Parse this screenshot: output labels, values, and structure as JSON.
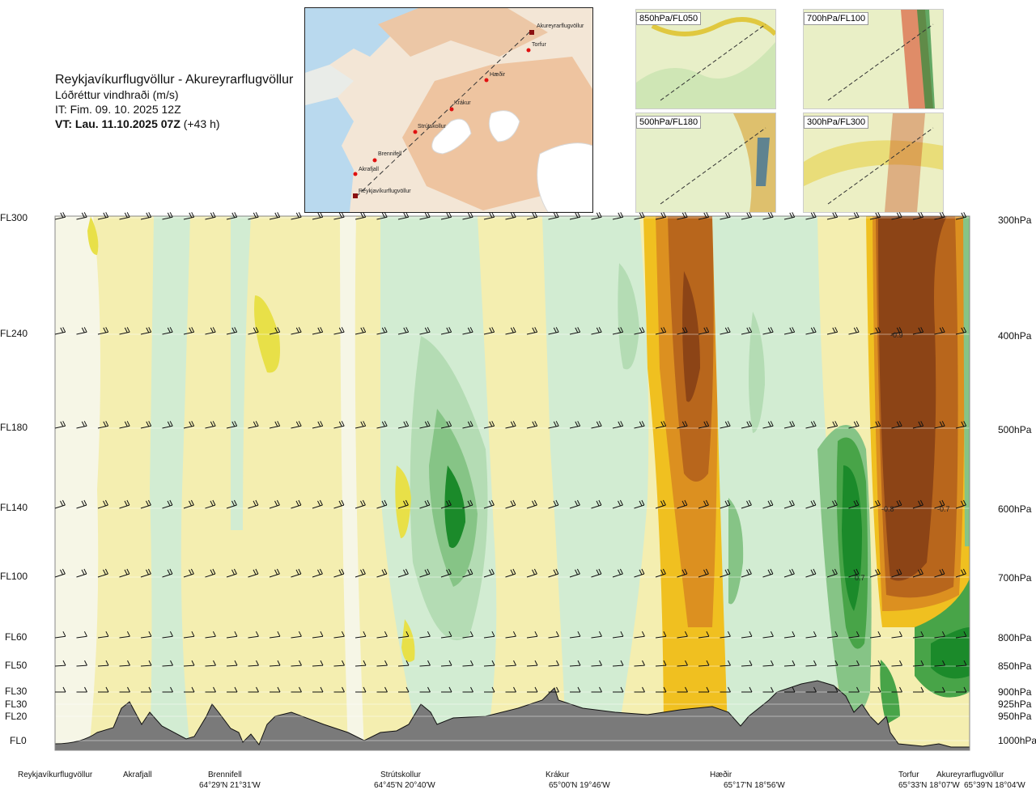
{
  "header": {
    "route": "Reykjavíkurflugvöllur - Akureyrarflugvöllur",
    "variable": "Lóðréttur vindhraði (m/s)",
    "issue_time": "IT: Fim. 09. 10. 2025 12Z",
    "valid_time": "VT: Lau. 11.10.2025 07Z",
    "lead": "(+43 h)"
  },
  "map": {
    "waypoints": [
      "Reykjavíkurflugvöllur",
      "Akrafjall",
      "Brennifell",
      "Strútskollur",
      "Krákur",
      "Hæðir",
      "Torfur",
      "Akureyrarflugvöllur"
    ]
  },
  "thumbnails": [
    "850hPa/FL050",
    "700hPa/FL100",
    "500hPa/FL180",
    "300hPa/FL300"
  ],
  "colors": {
    "strong_down": "#8c4416",
    "down_4": "#b8661c",
    "down_3": "#dc9020",
    "down_2": "#f0c020",
    "down_1": "#e8e048",
    "weak_down": "#f4eeb0",
    "neutral": "#f6f6e6",
    "weak_up": "#d2ecd2",
    "up_2": "#b4dcb4",
    "up_3": "#86c486",
    "up_4": "#48a448",
    "strong_up": "#1b8a2a",
    "terrain": "#7a7a7a"
  },
  "chart_data": {
    "type": "heatmap",
    "title": "Lóðréttur vindhraði (m/s)",
    "x_labels": [
      "Reykjavíkurflugvöllur",
      "Akrafjall",
      "Brennifell",
      "Strútskollur",
      "Krákur",
      "Hæðir",
      "Torfur",
      "Akureyrarflugvöllur"
    ],
    "x_coords": [
      "",
      "",
      "64°29'N 21°31'W",
      "64°45'N 20°40'W",
      "65°00'N 19°46'W",
      "65°17'N 18°56'W",
      "65°33'N 18°07'W",
      "65°39'N 18°04'W"
    ],
    "flight_levels": [
      "FL300",
      "FL240",
      "FL180",
      "FL140",
      "FL100",
      "FL60",
      "FL50",
      "FL30",
      "FL30",
      "FL20",
      "FL0"
    ],
    "pressure_levels": [
      "300hPa",
      "400hPa",
      "500hPa",
      "600hPa",
      "700hPa",
      "800hPa",
      "850hPa",
      "900hPa",
      "925hPa",
      "950hPa",
      "1000hPa"
    ],
    "value_labels": [
      "-0.9",
      "-0.8",
      "-0.7",
      "0.7"
    ],
    "features": [
      {
        "x": 0.935,
        "level": "FL240",
        "value": -0.9
      },
      {
        "x": 0.916,
        "level": "FL140",
        "value": -0.8
      },
      {
        "x": 0.97,
        "level": "FL140",
        "value": -0.7
      },
      {
        "x": 0.87,
        "level": "FL100",
        "value": 0.7
      }
    ]
  }
}
